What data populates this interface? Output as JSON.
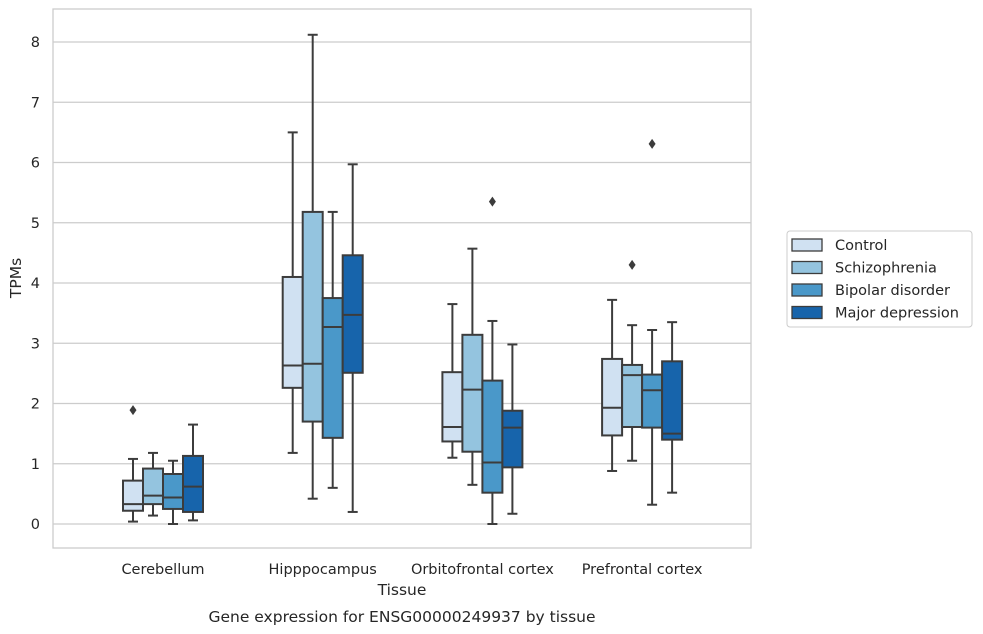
{
  "chart_data": {
    "type": "box",
    "caption": "Gene expression for ENSG00000249937 by tissue",
    "xlabel": "Tissue",
    "ylabel": "TPMs",
    "ylim": [
      -0.4,
      8.55
    ],
    "yticks": [
      0,
      1,
      2,
      3,
      4,
      5,
      6,
      7,
      8
    ],
    "grid": "horizontal",
    "legend_position": "right",
    "categories": [
      "Cerebellum",
      "Hipppocampus",
      "Orbitofrontal cortex",
      "Prefrontal cortex"
    ],
    "series": [
      {
        "name": "Control",
        "color": "#d0e1f2",
        "boxes": [
          {
            "whisker_low": 0.04,
            "q1": 0.22,
            "median": 0.33,
            "q3": 0.72,
            "whisker_high": 1.08,
            "outliers": [
              1.89
            ]
          },
          {
            "whisker_low": 1.18,
            "q1": 2.26,
            "median": 2.63,
            "q3": 4.1,
            "whisker_high": 6.5,
            "outliers": []
          },
          {
            "whisker_low": 1.1,
            "q1": 1.37,
            "median": 1.61,
            "q3": 2.52,
            "whisker_high": 3.65,
            "outliers": []
          },
          {
            "whisker_low": 0.88,
            "q1": 1.47,
            "median": 1.93,
            "q3": 2.74,
            "whisker_high": 3.72,
            "outliers": []
          }
        ]
      },
      {
        "name": "Schizophrenia",
        "color": "#94c4df",
        "boxes": [
          {
            "whisker_low": 0.14,
            "q1": 0.33,
            "median": 0.47,
            "q3": 0.92,
            "whisker_high": 1.18,
            "outliers": []
          },
          {
            "whisker_low": 0.42,
            "q1": 1.7,
            "median": 2.66,
            "q3": 5.18,
            "whisker_high": 8.12,
            "outliers": []
          },
          {
            "whisker_low": 0.65,
            "q1": 1.2,
            "median": 2.23,
            "q3": 3.14,
            "whisker_high": 4.57,
            "outliers": []
          },
          {
            "whisker_low": 1.05,
            "q1": 1.61,
            "median": 2.47,
            "q3": 2.64,
            "whisker_high": 3.3,
            "outliers": [
              4.3
            ]
          }
        ]
      },
      {
        "name": "Bipolar disorder",
        "color": "#4a98c9",
        "boxes": [
          {
            "whisker_low": 0.0,
            "q1": 0.25,
            "median": 0.44,
            "q3": 0.83,
            "whisker_high": 1.05,
            "outliers": []
          },
          {
            "whisker_low": 0.6,
            "q1": 1.43,
            "median": 3.27,
            "q3": 3.75,
            "whisker_high": 5.18,
            "outliers": []
          },
          {
            "whisker_low": 0.0,
            "q1": 0.52,
            "median": 1.02,
            "q3": 2.38,
            "whisker_high": 3.37,
            "outliers": [
              5.35
            ]
          },
          {
            "whisker_low": 0.32,
            "q1": 1.6,
            "median": 2.22,
            "q3": 2.48,
            "whisker_high": 3.22,
            "outliers": [
              6.31
            ]
          }
        ]
      },
      {
        "name": "Major depression",
        "color": "#1764ab",
        "boxes": [
          {
            "whisker_low": 0.06,
            "q1": 0.2,
            "median": 0.62,
            "q3": 1.13,
            "whisker_high": 1.65,
            "outliers": []
          },
          {
            "whisker_low": 0.2,
            "q1": 2.51,
            "median": 3.47,
            "q3": 4.46,
            "whisker_high": 5.97,
            "outliers": []
          },
          {
            "whisker_low": 0.17,
            "q1": 0.94,
            "median": 1.6,
            "q3": 1.88,
            "whisker_high": 2.98,
            "outliers": []
          },
          {
            "whisker_low": 0.52,
            "q1": 1.4,
            "median": 1.5,
            "q3": 2.7,
            "whisker_high": 3.35,
            "outliers": []
          }
        ]
      }
    ]
  }
}
